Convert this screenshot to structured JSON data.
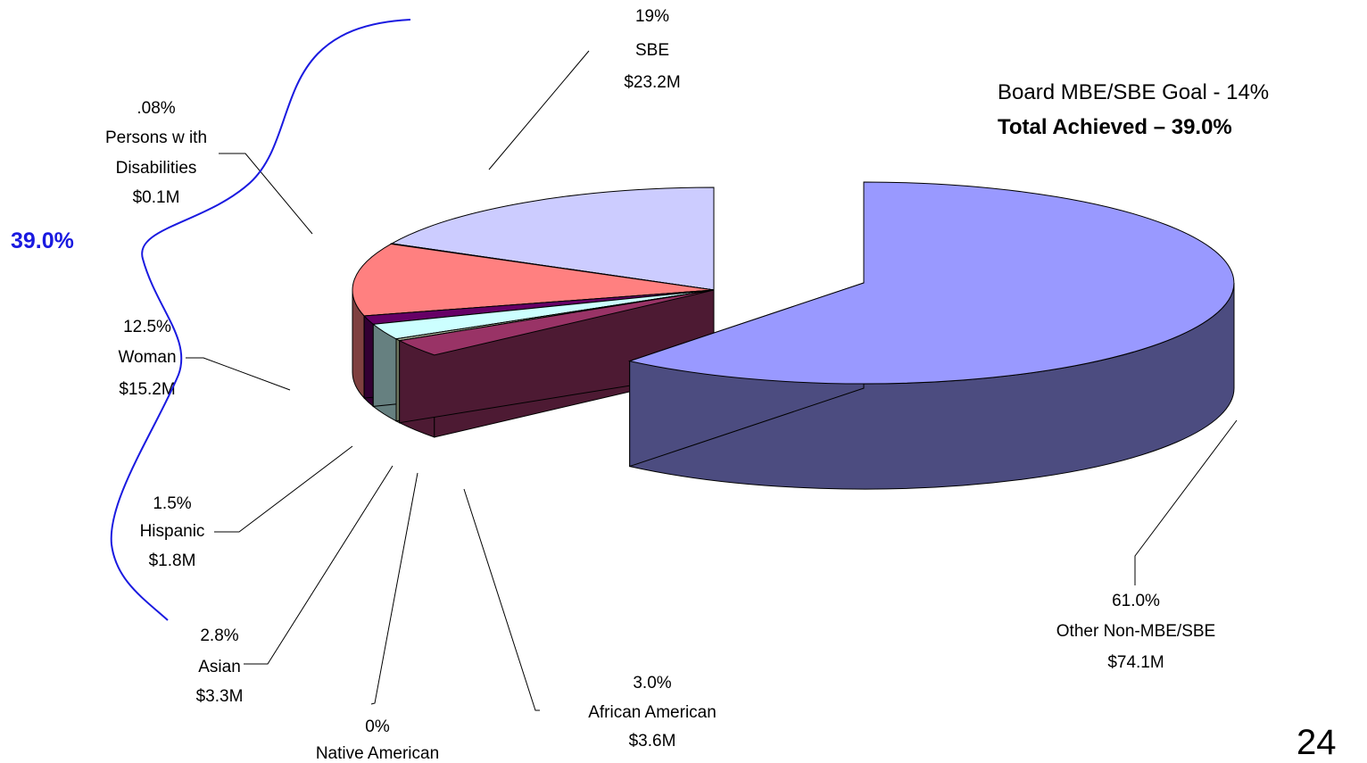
{
  "chart_data": {
    "type": "pie",
    "title": "",
    "goal_text": "Board MBE/SBE Goal - 14%",
    "achieved_text": "Total Achieved – 39.0%",
    "bracket_label": "39.0%",
    "page_number": "24",
    "slices": [
      {
        "name": "Other Non-MBE/SBE",
        "percent_label": "61.0%",
        "amount": "$74.1M",
        "value": 74.1,
        "colors": {
          "top": "#9999ff",
          "side": "#4c4c80"
        }
      },
      {
        "name": "SBE",
        "percent_label": "19%",
        "amount": "$23.2M",
        "value": 23.2,
        "colors": {
          "top": "#ccccff",
          "side": "#666680"
        }
      },
      {
        "name": "Persons w ith Disabilities",
        "name_lines": [
          "Persons w ith",
          "Disabilities"
        ],
        "percent_label": ".08%",
        "amount": "$0.1M",
        "value": 0.1,
        "colors": {
          "top": "#003366",
          "side": "#00264d"
        }
      },
      {
        "name": "Woman",
        "percent_label": "12.5%",
        "amount": "$15.2M",
        "value": 15.2,
        "colors": {
          "top": "#ff8080",
          "side": "#7f4040"
        }
      },
      {
        "name": "Hispanic",
        "percent_label": "1.5%",
        "amount": "$1.8M",
        "value": 1.8,
        "colors": {
          "top": "#660066",
          "side": "#330033"
        }
      },
      {
        "name": "Asian",
        "percent_label": "2.8%",
        "amount": "$3.3M",
        "value": 3.3,
        "colors": {
          "top": "#ccffff",
          "side": "#668080"
        }
      },
      {
        "name": "Native American",
        "percent_label": "0%",
        "amount": "",
        "value": 0.4,
        "colors": {
          "top": "#b0b8a0",
          "side": "#6e7660"
        }
      },
      {
        "name": "African American",
        "percent_label": "3.0%",
        "amount": "$3.6M",
        "value": 3.6,
        "colors": {
          "top": "#993366",
          "side": "#4d1a33"
        }
      }
    ],
    "legend": "none",
    "bracket_color": "#1a1ae0",
    "leader_color": "#000000"
  }
}
